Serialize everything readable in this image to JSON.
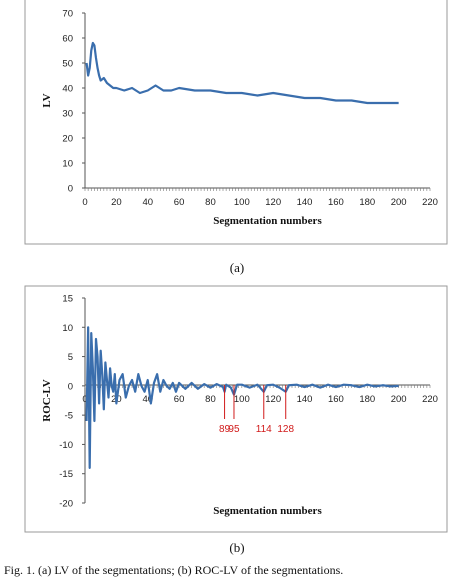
{
  "chart_data": [
    {
      "type": "line",
      "caption": "(a)",
      "xlabel": "Segmentation numbers",
      "ylabel": "LV",
      "xlim": [
        0,
        220
      ],
      "ylim": [
        0,
        70
      ],
      "x_ticks": [
        "0",
        "20",
        "40",
        "60",
        "80",
        "100",
        "120",
        "140",
        "160",
        "180",
        "200",
        "220"
      ],
      "y_ticks": [
        "0",
        "10",
        "20",
        "30",
        "40",
        "50",
        "60",
        "70"
      ],
      "grid": false,
      "color": "#3a6ead",
      "x": [
        1,
        2,
        3,
        4,
        5,
        6,
        7,
        8,
        9,
        10,
        12,
        14,
        16,
        18,
        20,
        25,
        30,
        35,
        40,
        45,
        50,
        55,
        60,
        70,
        80,
        90,
        100,
        110,
        120,
        130,
        140,
        150,
        160,
        170,
        180,
        190,
        200
      ],
      "y": [
        50,
        45,
        48,
        55,
        58,
        57,
        52,
        48,
        45,
        43,
        44,
        42,
        41,
        40,
        40,
        39,
        40,
        38,
        39,
        41,
        39,
        39,
        40,
        39,
        39,
        38,
        38,
        37,
        38,
        37,
        36,
        36,
        35,
        35,
        34,
        34,
        34
      ]
    },
    {
      "type": "line",
      "caption": "(b)",
      "xlabel": "Segmentation numbers",
      "ylabel": "ROC-LV",
      "xlim": [
        0,
        220
      ],
      "ylim": [
        -20,
        15
      ],
      "x_ticks": [
        "0",
        "20",
        "40",
        "60",
        "80",
        "100",
        "120",
        "140",
        "160",
        "180",
        "200",
        "220"
      ],
      "y_ticks": [
        "-20",
        "-15",
        "-10",
        "-5",
        "0",
        "5",
        "10",
        "15"
      ],
      "grid": false,
      "color": "#3a6ead",
      "x": [
        1,
        2,
        3,
        4,
        5,
        6,
        7,
        8,
        9,
        10,
        11,
        12,
        13,
        14,
        15,
        16,
        17,
        18,
        19,
        20,
        22,
        24,
        26,
        28,
        30,
        32,
        34,
        36,
        38,
        40,
        42,
        44,
        46,
        48,
        50,
        52,
        54,
        56,
        58,
        60,
        64,
        68,
        72,
        76,
        80,
        84,
        88,
        89,
        90,
        93,
        95,
        97,
        100,
        105,
        110,
        114,
        116,
        120,
        124,
        128,
        130,
        135,
        140,
        145,
        150,
        155,
        160,
        165,
        170,
        175,
        180,
        185,
        190,
        195,
        200
      ],
      "y": [
        -6,
        10,
        -14,
        9,
        3,
        -6,
        8,
        5,
        -3,
        6,
        2,
        -4,
        4,
        1,
        -2,
        3,
        0,
        -1,
        2,
        -3,
        1,
        2,
        -2,
        0,
        1,
        -1,
        2,
        0,
        -1,
        1,
        -3,
        0.5,
        2,
        -1,
        1,
        0,
        -0.5,
        0.5,
        -1,
        0.5,
        -0.5,
        0.5,
        -0.5,
        0.3,
        -0.3,
        0.3,
        -0.2,
        -1,
        0.2,
        -0.3,
        -1.5,
        0.2,
        0.2,
        -0.3,
        0.2,
        -1,
        0.1,
        0.2,
        -0.3,
        -1,
        0.1,
        0.2,
        -0.2,
        0.2,
        -0.3,
        0.2,
        -0.2,
        0.2,
        0.1,
        -0.2,
        0.2,
        -0.1,
        0.1,
        -0.1,
        0
      ],
      "annotations": [
        {
          "x": 89,
          "label": "89"
        },
        {
          "x": 95,
          "label": "95"
        },
        {
          "x": 114,
          "label": "114"
        },
        {
          "x": 128,
          "label": "128"
        }
      ],
      "annotation_color": "#d11a1a"
    }
  ],
  "footer_text": "Fig. 1. (a) LV of the segmentations; (b) ROC-LV of the segmentations."
}
